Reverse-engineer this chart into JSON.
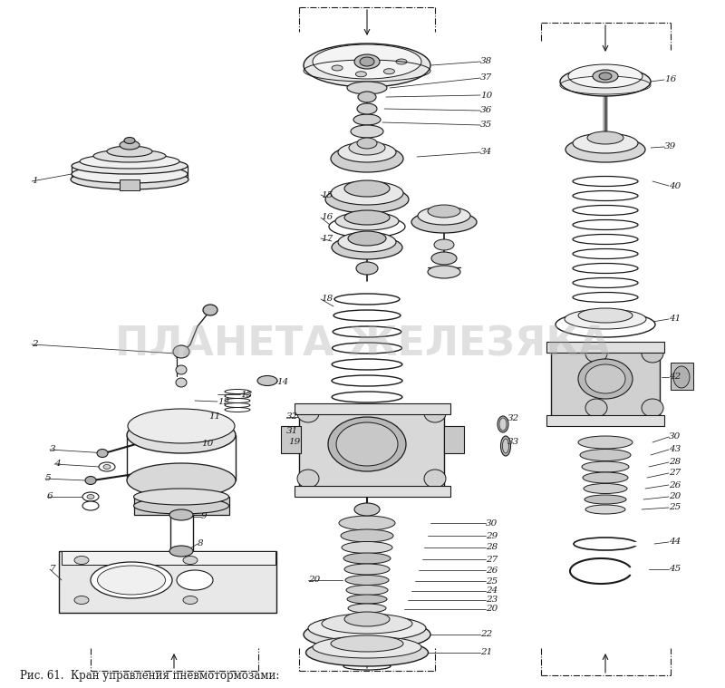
{
  "caption": "Рис. 61.  Кран управления пневмотормозами:",
  "bg_color": "#ffffff",
  "fig_width": 8.0,
  "fig_height": 7.59,
  "watermark": "ПЛАНЕТА ЖЕЛЕЗЯКА",
  "watermark_color": "#b0b0b0",
  "watermark_alpha": 0.38,
  "line_color": "#1a1a1a",
  "dpi": 100
}
